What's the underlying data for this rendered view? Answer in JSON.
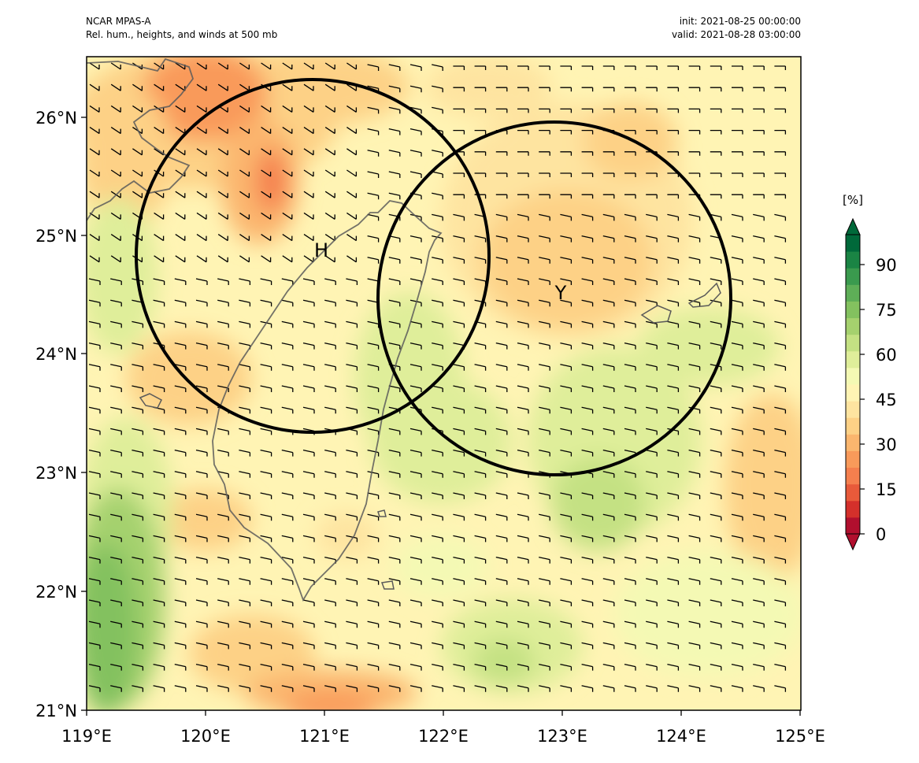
{
  "header": {
    "left_line1": "NCAR MPAS-A",
    "left_line2": "Rel. hum., heights, and winds at 500 mb",
    "right_line1": "init: 2021-08-25 00:00:00",
    "right_line2": "valid: 2021-08-28 03:00:00"
  },
  "axes": {
    "lon_labels": [
      "119°E",
      "120°E",
      "121°E",
      "122°E",
      "123°E",
      "124°E",
      "125°E"
    ],
    "lat_labels": [
      "21°N",
      "22°N",
      "23°N",
      "24°N",
      "25°N",
      "26°N"
    ]
  },
  "colorbar": {
    "unit": "[%]",
    "tick_labels": [
      "0",
      "15",
      "30",
      "45",
      "60",
      "75",
      "90"
    ],
    "colors": [
      "#b10f2e",
      "#d4302b",
      "#e85a3a",
      "#f57f4e",
      "#f99a5a",
      "#fbb66e",
      "#fdd186",
      "#fee4a0",
      "#fff4b4",
      "#f4f9b4",
      "#dfee9a",
      "#c4e183",
      "#a5d16e",
      "#83c15f",
      "#5eae57",
      "#3a9a4e",
      "#1a8444",
      "#00693a"
    ]
  },
  "centers": [
    {
      "label": "H",
      "lon": 120.95,
      "lat": 24.85
    },
    {
      "label": "Y",
      "lon": 122.95,
      "lat": 24.5
    }
  ],
  "colors": {
    "circle": "#000000",
    "coastline": "#5a5a5a"
  }
}
